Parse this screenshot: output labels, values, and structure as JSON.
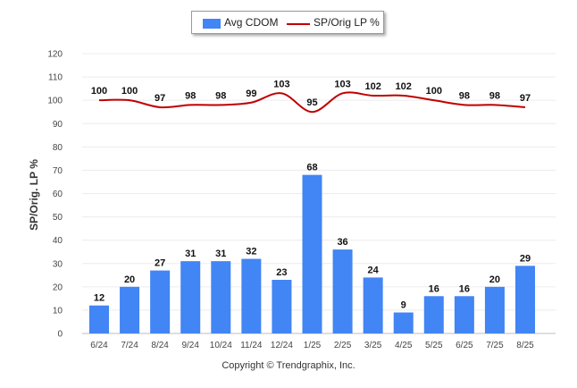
{
  "chart_data": {
    "type": "bar",
    "categories": [
      "6/24",
      "7/24",
      "8/24",
      "9/24",
      "10/24",
      "11/24",
      "12/24",
      "1/25",
      "2/25",
      "3/25",
      "4/25",
      "5/25",
      "6/25",
      "7/25",
      "8/25"
    ],
    "series": [
      {
        "name": "Avg CDOM",
        "type": "bar",
        "color": "#4285F4",
        "values": [
          12,
          20,
          27,
          31,
          31,
          32,
          23,
          68,
          36,
          24,
          9,
          16,
          16,
          20,
          29
        ]
      },
      {
        "name": "SP/Orig LP %",
        "type": "line",
        "color": "#C00000",
        "values": [
          100,
          100,
          97,
          98,
          98,
          99,
          103,
          95,
          103,
          102,
          102,
          100,
          98,
          98,
          97
        ]
      }
    ],
    "ylabel": "SP/Orig. LP %",
    "xlabel": "",
    "ylim": [
      0,
      120
    ],
    "yticks": [
      0,
      10,
      20,
      30,
      40,
      50,
      60,
      70,
      80,
      90,
      100,
      110,
      120
    ],
    "grid": true,
    "legend_position": "top-center"
  },
  "legend": {
    "bar_label": "Avg CDOM",
    "line_label": "SP/Orig LP %"
  },
  "credit": "Copyright © Trendgraphix, Inc."
}
